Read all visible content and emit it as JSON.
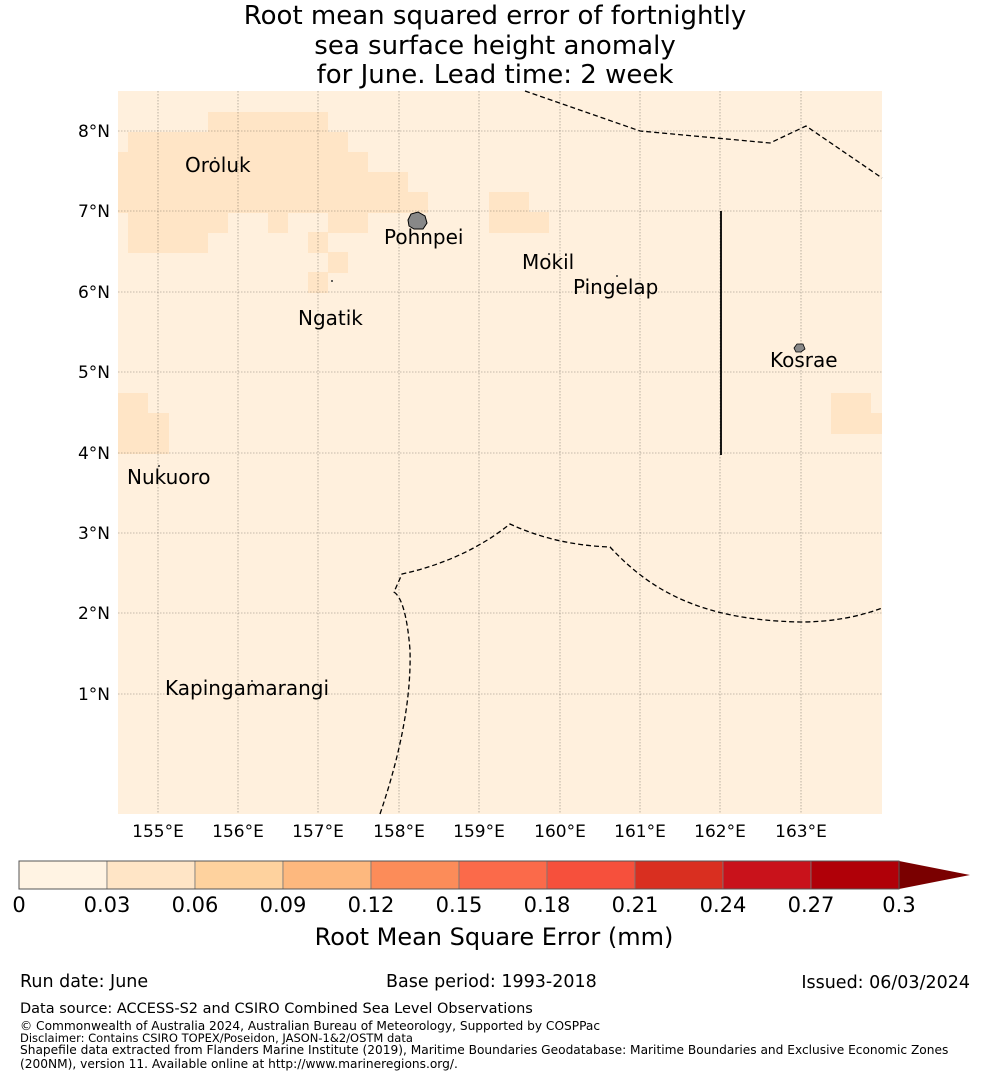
{
  "title_lines": [
    "Root mean squared error of fortnightly",
    "sea surface height anomaly",
    "for June. Lead time: 2 week"
  ],
  "map": {
    "lon_ticks": [
      "155°E",
      "156°E",
      "157°E",
      "158°E",
      "159°E",
      "160°E",
      "161°E",
      "162°E",
      "163°E"
    ],
    "lat_ticks": [
      "8°N",
      "7°N",
      "6°N",
      "5°N",
      "4°N",
      "3°N",
      "2°N",
      "1°N"
    ],
    "places": [
      {
        "name": "Oroluk"
      },
      {
        "name": "Pohnpei"
      },
      {
        "name": "Mokil"
      },
      {
        "name": "Pingelap"
      },
      {
        "name": "Ngatik"
      },
      {
        "name": "Kosrae"
      },
      {
        "name": "Nukuoro"
      },
      {
        "name": "Kapingamarangi"
      }
    ],
    "colors": {
      "bin0": "#fff0dd",
      "bin1": "#ffe5c6",
      "ocean_bg": "#fff0dd"
    }
  },
  "colorbar": {
    "tick_labels": [
      "0",
      "0.03",
      "0.06",
      "0.09",
      "0.12",
      "0.15",
      "0.18",
      "0.21",
      "0.24",
      "0.27",
      "0.3"
    ],
    "colors": [
      "#fff3e3",
      "#ffe5c6",
      "#fed29e",
      "#fdb87e",
      "#fc8c59",
      "#fb6a4a",
      "#f6503c",
      "#d92f20",
      "#c9121b",
      "#b00008",
      "#7a0000"
    ],
    "label": "Root Mean Square Error (mm)"
  },
  "footer": {
    "run_date": "Run date: June",
    "base_period": "Base period: 1993-2018",
    "issued": "Issued: 06/03/2024",
    "data_source": "Data source: ACCESS-S2 and CSIRO Combined Sea Level Observations",
    "copyright": "© Commonwealth of Australia 2024, Australian Bureau of Meteorology, Supported by COSPPac",
    "disclaimer": "Disclaimer: Contains CSIRO TOPEX/Poseidon, JASON-1&2/OSTM data",
    "shapefile_line1": "Shapefile data extracted from Flanders Marine Institute (2019), Maritime Boundaries Geodatabase: Maritime Boundaries and Exclusive Economic Zones",
    "shapefile_line2": "(200NM), version 11. Available online at http://www.marineregions.org/."
  }
}
